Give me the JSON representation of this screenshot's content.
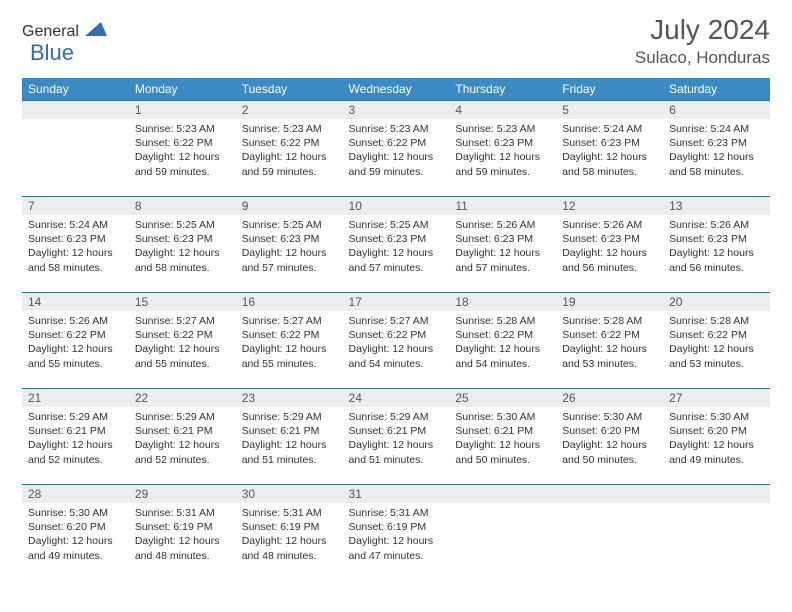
{
  "brand": {
    "part1": "General",
    "part2": "Blue"
  },
  "title": "July 2024",
  "location": "Sulaco, Honduras",
  "colors": {
    "header_bg": "#3b8ac4",
    "header_text": "#ffffff",
    "daynum_bg": "#ededed",
    "daynum_border": "#2f6fb0",
    "body_text": "#333333",
    "title_text": "#555555",
    "logo_gray": "#6b6b6b",
    "logo_blue": "#2f6fb0",
    "page_bg": "#ffffff"
  },
  "typography": {
    "month_title_fontsize": 28,
    "location_fontsize": 17,
    "weekday_fontsize": 12,
    "daynum_fontsize": 12,
    "cell_fontsize": 10.5
  },
  "weekdays": [
    "Sunday",
    "Monday",
    "Tuesday",
    "Wednesday",
    "Thursday",
    "Friday",
    "Saturday"
  ],
  "weeks": [
    {
      "nums": [
        "",
        "1",
        "2",
        "3",
        "4",
        "5",
        "6"
      ],
      "cells": [
        null,
        {
          "sunrise": "5:23 AM",
          "sunset": "6:22 PM",
          "daylight": "12 hours and 59 minutes."
        },
        {
          "sunrise": "5:23 AM",
          "sunset": "6:22 PM",
          "daylight": "12 hours and 59 minutes."
        },
        {
          "sunrise": "5:23 AM",
          "sunset": "6:22 PM",
          "daylight": "12 hours and 59 minutes."
        },
        {
          "sunrise": "5:23 AM",
          "sunset": "6:23 PM",
          "daylight": "12 hours and 59 minutes."
        },
        {
          "sunrise": "5:24 AM",
          "sunset": "6:23 PM",
          "daylight": "12 hours and 58 minutes."
        },
        {
          "sunrise": "5:24 AM",
          "sunset": "6:23 PM",
          "daylight": "12 hours and 58 minutes."
        }
      ]
    },
    {
      "nums": [
        "7",
        "8",
        "9",
        "10",
        "11",
        "12",
        "13"
      ],
      "cells": [
        {
          "sunrise": "5:24 AM",
          "sunset": "6:23 PM",
          "daylight": "12 hours and 58 minutes."
        },
        {
          "sunrise": "5:25 AM",
          "sunset": "6:23 PM",
          "daylight": "12 hours and 58 minutes."
        },
        {
          "sunrise": "5:25 AM",
          "sunset": "6:23 PM",
          "daylight": "12 hours and 57 minutes."
        },
        {
          "sunrise": "5:25 AM",
          "sunset": "6:23 PM",
          "daylight": "12 hours and 57 minutes."
        },
        {
          "sunrise": "5:26 AM",
          "sunset": "6:23 PM",
          "daylight": "12 hours and 57 minutes."
        },
        {
          "sunrise": "5:26 AM",
          "sunset": "6:23 PM",
          "daylight": "12 hours and 56 minutes."
        },
        {
          "sunrise": "5:26 AM",
          "sunset": "6:23 PM",
          "daylight": "12 hours and 56 minutes."
        }
      ]
    },
    {
      "nums": [
        "14",
        "15",
        "16",
        "17",
        "18",
        "19",
        "20"
      ],
      "cells": [
        {
          "sunrise": "5:26 AM",
          "sunset": "6:22 PM",
          "daylight": "12 hours and 55 minutes."
        },
        {
          "sunrise": "5:27 AM",
          "sunset": "6:22 PM",
          "daylight": "12 hours and 55 minutes."
        },
        {
          "sunrise": "5:27 AM",
          "sunset": "6:22 PM",
          "daylight": "12 hours and 55 minutes."
        },
        {
          "sunrise": "5:27 AM",
          "sunset": "6:22 PM",
          "daylight": "12 hours and 54 minutes."
        },
        {
          "sunrise": "5:28 AM",
          "sunset": "6:22 PM",
          "daylight": "12 hours and 54 minutes."
        },
        {
          "sunrise": "5:28 AM",
          "sunset": "6:22 PM",
          "daylight": "12 hours and 53 minutes."
        },
        {
          "sunrise": "5:28 AM",
          "sunset": "6:22 PM",
          "daylight": "12 hours and 53 minutes."
        }
      ]
    },
    {
      "nums": [
        "21",
        "22",
        "23",
        "24",
        "25",
        "26",
        "27"
      ],
      "cells": [
        {
          "sunrise": "5:29 AM",
          "sunset": "6:21 PM",
          "daylight": "12 hours and 52 minutes."
        },
        {
          "sunrise": "5:29 AM",
          "sunset": "6:21 PM",
          "daylight": "12 hours and 52 minutes."
        },
        {
          "sunrise": "5:29 AM",
          "sunset": "6:21 PM",
          "daylight": "12 hours and 51 minutes."
        },
        {
          "sunrise": "5:29 AM",
          "sunset": "6:21 PM",
          "daylight": "12 hours and 51 minutes."
        },
        {
          "sunrise": "5:30 AM",
          "sunset": "6:21 PM",
          "daylight": "12 hours and 50 minutes."
        },
        {
          "sunrise": "5:30 AM",
          "sunset": "6:20 PM",
          "daylight": "12 hours and 50 minutes."
        },
        {
          "sunrise": "5:30 AM",
          "sunset": "6:20 PM",
          "daylight": "12 hours and 49 minutes."
        }
      ]
    },
    {
      "nums": [
        "28",
        "29",
        "30",
        "31",
        "",
        "",
        ""
      ],
      "cells": [
        {
          "sunrise": "5:30 AM",
          "sunset": "6:20 PM",
          "daylight": "12 hours and 49 minutes."
        },
        {
          "sunrise": "5:31 AM",
          "sunset": "6:19 PM",
          "daylight": "12 hours and 48 minutes."
        },
        {
          "sunrise": "5:31 AM",
          "sunset": "6:19 PM",
          "daylight": "12 hours and 48 minutes."
        },
        {
          "sunrise": "5:31 AM",
          "sunset": "6:19 PM",
          "daylight": "12 hours and 47 minutes."
        },
        null,
        null,
        null
      ]
    }
  ],
  "labels": {
    "sunrise": "Sunrise:",
    "sunset": "Sunset:",
    "daylight": "Daylight:"
  }
}
